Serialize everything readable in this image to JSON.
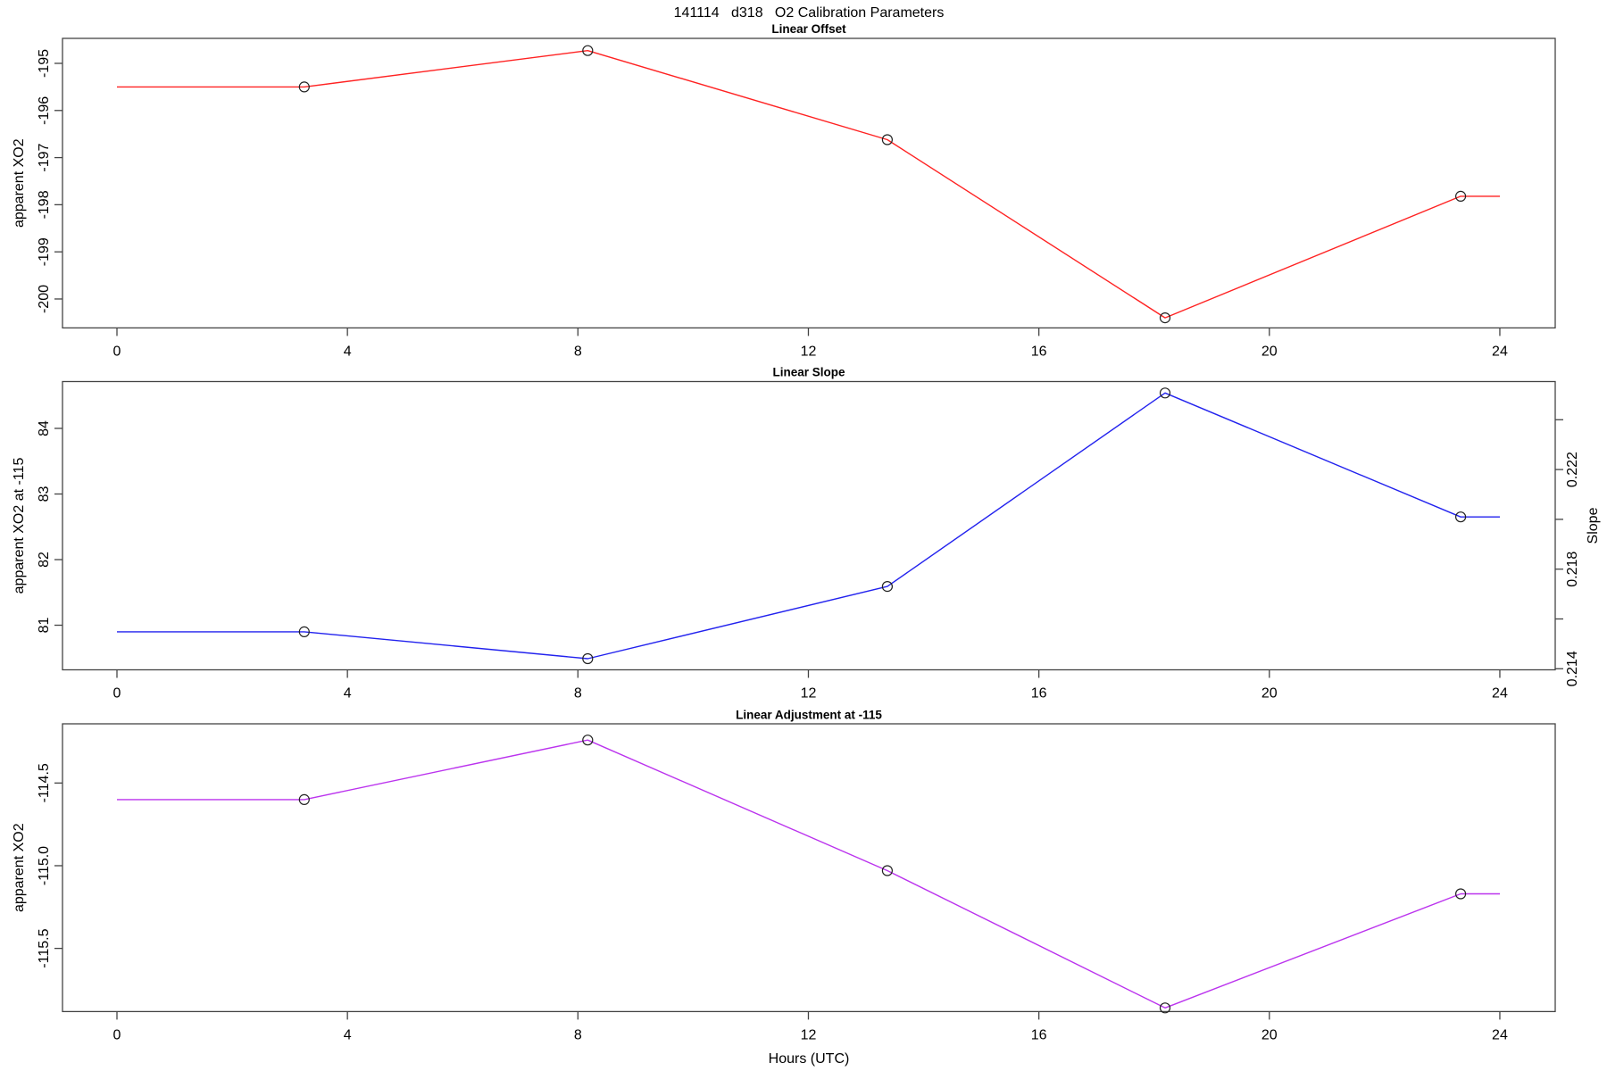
{
  "page_title": "141114   d318   O2 Calibration Parameters",
  "x_axis": {
    "label": "Hours (UTC)",
    "ticks": [
      "0",
      "4",
      "8",
      "12",
      "16",
      "20",
      "24"
    ],
    "tick_values": [
      0,
      4,
      8,
      12,
      16,
      20,
      24
    ],
    "xlim": [
      0,
      24
    ]
  },
  "chart_data": [
    {
      "type": "line",
      "title": "Linear Offset",
      "ylabel": "apparent XO2",
      "color": "#ff2222",
      "marker_color": "#222222",
      "x": [
        0,
        3.25,
        8.17,
        13.37,
        18.19,
        23.32,
        24
      ],
      "values": [
        -195.5,
        -195.5,
        -194.73,
        -196.62,
        -200.4,
        -197.82,
        -197.82
      ],
      "marker_indices": [
        1,
        2,
        3,
        4,
        5
      ],
      "yticks": [
        {
          "v": -195,
          "label": "-195"
        },
        {
          "v": -196,
          "label": "-196"
        },
        {
          "v": -197,
          "label": "-197"
        },
        {
          "v": -198,
          "label": "-198"
        },
        {
          "v": -199,
          "label": "-199"
        },
        {
          "v": -200,
          "label": "-200"
        }
      ],
      "ylim": [
        -200.61,
        -194.47
      ]
    },
    {
      "type": "line",
      "title": "Linear Slope",
      "ylabel": "apparent XO2 at -115",
      "y2label": "Slope",
      "color": "#2222ee",
      "marker_color": "#222222",
      "x": [
        0,
        3.25,
        8.17,
        13.37,
        18.19,
        23.32,
        24
      ],
      "values": [
        80.9,
        80.9,
        80.49,
        81.59,
        84.54,
        82.65,
        82.65
      ],
      "marker_indices": [
        1,
        2,
        3,
        4,
        5
      ],
      "yticks": [
        {
          "v": 81,
          "label": "81"
        },
        {
          "v": 82,
          "label": "82"
        },
        {
          "v": 83,
          "label": "83"
        },
        {
          "v": 84,
          "label": "84"
        }
      ],
      "y2ticks": [
        {
          "v": 0.214,
          "label": "0.214"
        },
        {
          "v": 0.216,
          "label": ""
        },
        {
          "v": 0.218,
          "label": "0.218"
        },
        {
          "v": 0.22,
          "label": ""
        },
        {
          "v": 0.222,
          "label": "0.222"
        },
        {
          "v": 0.224,
          "label": ""
        }
      ],
      "ylim": [
        80.32,
        84.71
      ]
    },
    {
      "type": "line",
      "title": "Linear Adjustment at -115",
      "ylabel": "apparent XO2",
      "color": "#bb33ee",
      "marker_color": "#222222",
      "x": [
        0,
        3.25,
        8.17,
        13.37,
        18.19,
        23.32,
        24
      ],
      "values": [
        -114.6,
        -114.6,
        -114.24,
        -115.03,
        -115.86,
        -115.17,
        -115.17
      ],
      "marker_indices": [
        1,
        2,
        3,
        4,
        5
      ],
      "yticks": [
        {
          "v": -114.5,
          "label": "-114.5"
        },
        {
          "v": -115.0,
          "label": "-115.0"
        },
        {
          "v": -115.5,
          "label": "-115.5"
        }
      ],
      "ylim": [
        -115.88,
        -114.14
      ]
    }
  ]
}
